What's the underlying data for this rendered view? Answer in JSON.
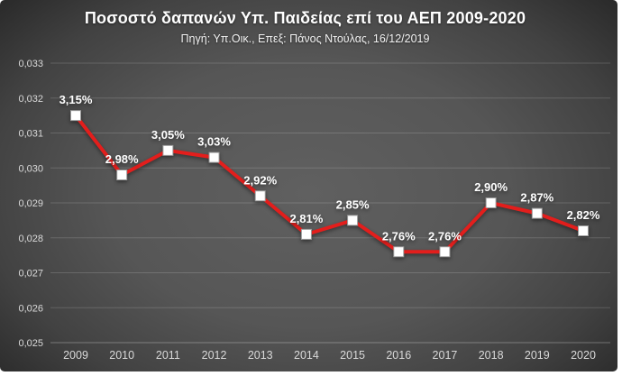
{
  "chart_data": {
    "type": "line",
    "title": "Ποσοστό δαπανών Υπ. Παιδείας επί του ΑΕΠ 2009-2020",
    "subtitle": "Πηγή: Υπ.Οικ., Επεξ: Πάνος Ντούλας, 16/12/2019",
    "categories": [
      "2009",
      "2010",
      "2011",
      "2012",
      "2013",
      "2014",
      "2015",
      "2016",
      "2017",
      "2018",
      "2019",
      "2020"
    ],
    "values": [
      0.0315,
      0.0298,
      0.0305,
      0.0303,
      0.0292,
      0.0281,
      0.0285,
      0.0276,
      0.0276,
      0.029,
      0.0287,
      0.0282
    ],
    "data_labels": [
      "3,15%",
      "2,98%",
      "3,05%",
      "3,03%",
      "2,92%",
      "2,81%",
      "2,85%",
      "2,76%",
      "2,76%",
      "2,90%",
      "2,87%",
      "2,82%"
    ],
    "y_ticks": [
      "0,033",
      "0,032",
      "0,031",
      "0,030",
      "0,029",
      "0,028",
      "0,027",
      "0,026",
      "0,025"
    ],
    "ylim": [
      0.025,
      0.033
    ],
    "grid": true,
    "legend": "none",
    "colors": {
      "line": "#e31e1c",
      "marker_fill": "#ffffff",
      "marker_stroke": "#9c9c9c",
      "data_label": "#ffffff",
      "tick_label": "#d9d9d9",
      "gridline": "rgba(255,255,255,0.16)",
      "axis_line": "rgba(255,255,255,0.30)",
      "background_center": "#5e5e5e",
      "background_edge": "#242424",
      "title": "#ffffff"
    }
  }
}
